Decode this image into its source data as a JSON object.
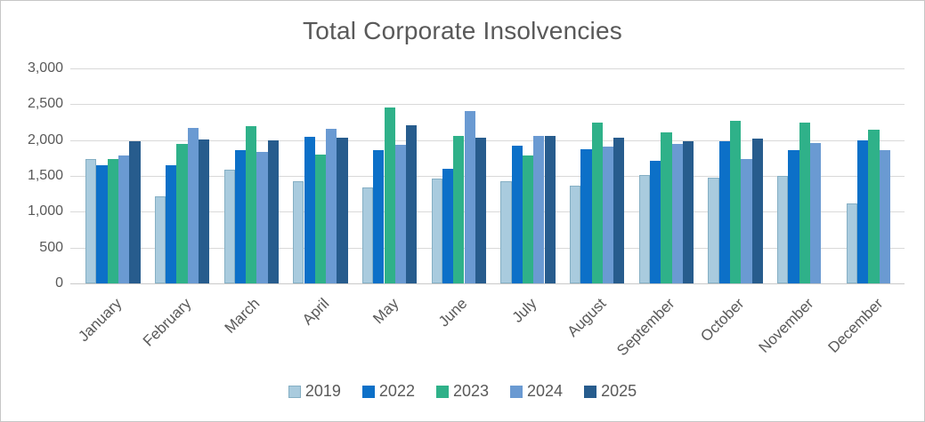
{
  "window": {
    "background_color": "#FFFFFF",
    "border_color": "#C6C6C6",
    "text_color": "#595959",
    "gridline_color": "#D9D9D9"
  },
  "chart_data": {
    "type": "bar",
    "title": "Total Corporate Insolvencies",
    "xlabel": "",
    "ylabel": "",
    "ylim": [
      0,
      3000
    ],
    "ytick_labels": [
      "3,000",
      "2,500",
      "2,000",
      "1,500",
      "1,000",
      "500",
      "0"
    ],
    "ytick_values": [
      3000,
      2500,
      2000,
      1500,
      1000,
      500,
      0
    ],
    "grid": true,
    "legend_position": "bottom",
    "categories": [
      "January",
      "February",
      "March",
      "April",
      "May",
      "June",
      "July",
      "August",
      "September",
      "October",
      "November",
      "December"
    ],
    "series": [
      {
        "name": "2019",
        "color": "#A9CBDE",
        "border_color": "#85AFC4",
        "values": [
          1730,
          1210,
          1590,
          1430,
          1340,
          1460,
          1430,
          1360,
          1510,
          1470,
          1500,
          1120
        ]
      },
      {
        "name": "2022",
        "color": "#0C70C8",
        "border_color": null,
        "values": [
          1650,
          1650,
          1860,
          2040,
          1860,
          1600,
          1920,
          1870,
          1710,
          1985,
          1860,
          2000
        ]
      },
      {
        "name": "2023",
        "color": "#2FB189",
        "border_color": null,
        "values": [
          1740,
          1950,
          2190,
          1800,
          2460,
          2060,
          1790,
          2250,
          2110,
          2270,
          2240,
          2140
        ]
      },
      {
        "name": "2024",
        "color": "#6A9AD2",
        "border_color": null,
        "values": [
          1790,
          2170,
          1840,
          2160,
          1930,
          2410,
          2060,
          1910,
          1950,
          1730,
          1955,
          1855
        ]
      },
      {
        "name": "2025",
        "color": "#275C8D",
        "border_color": null,
        "values": [
          1980,
          2010,
          2000,
          2030,
          2210,
          2030,
          2060,
          2030,
          1985,
          2020,
          null,
          null
        ]
      }
    ]
  }
}
